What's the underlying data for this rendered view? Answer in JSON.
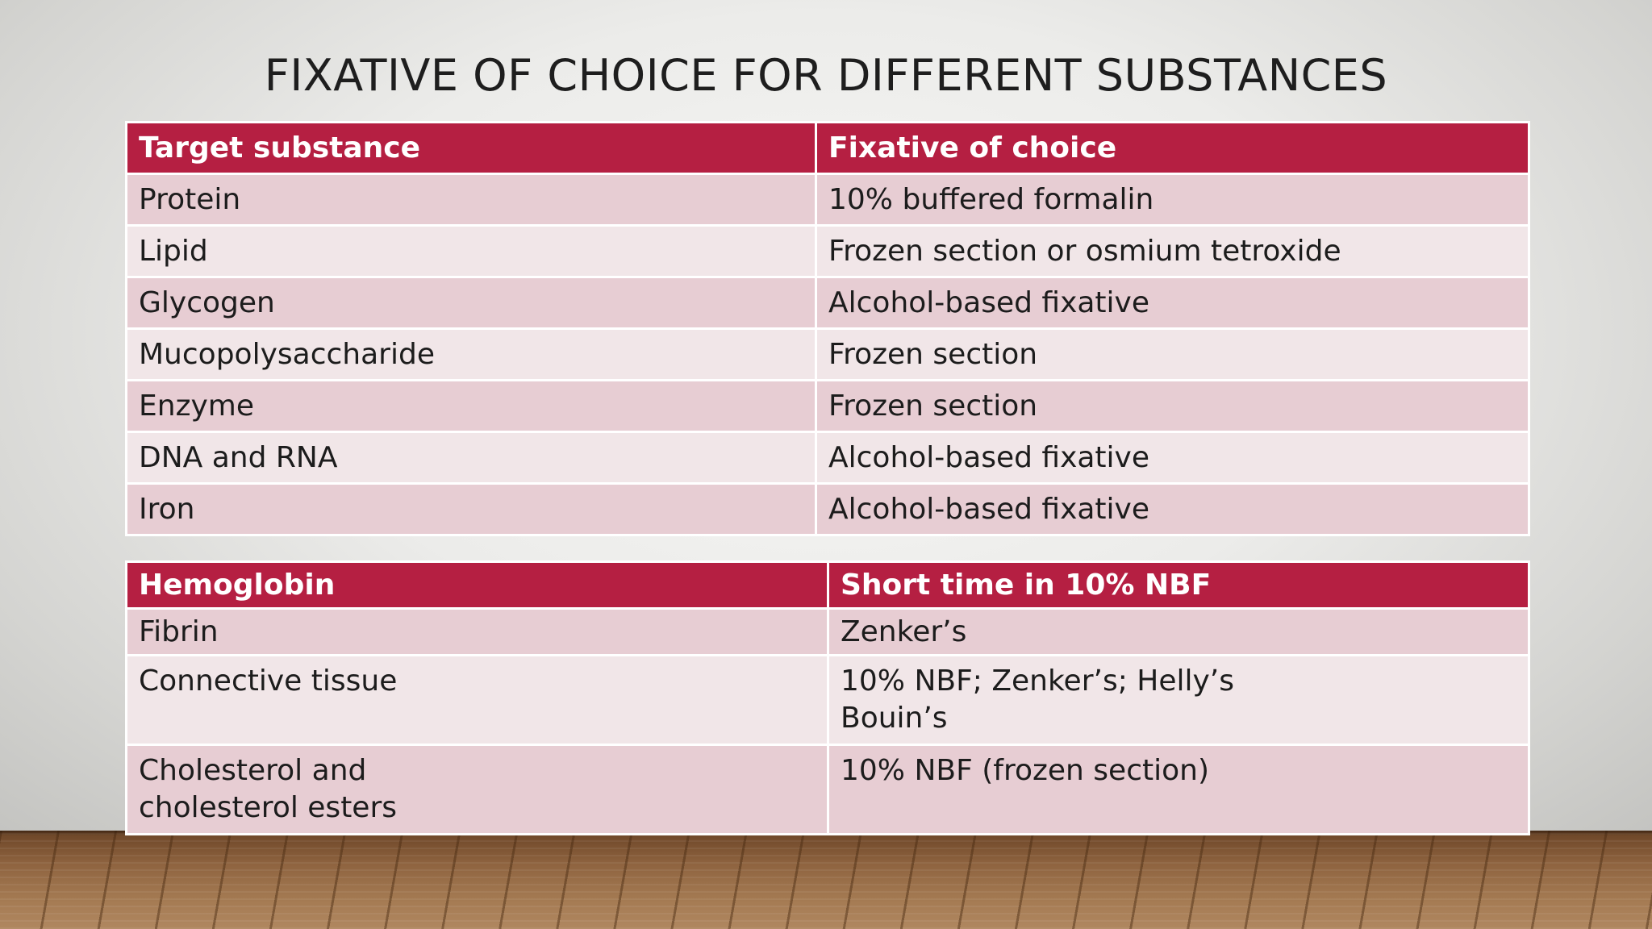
{
  "slide": {
    "title": "FIXATIVE OF CHOICE FOR DIFFERENT SUBSTANCES"
  },
  "table1": {
    "headers": [
      "Target substance",
      "Fixative of choice"
    ],
    "rows": [
      [
        "Protein",
        "10% buffered formalin"
      ],
      [
        "Lipid",
        "Frozen section or osmium tetroxide"
      ],
      [
        "Glycogen",
        "Alcohol-based fixative"
      ],
      [
        "Mucopolysaccharide",
        "Frozen section"
      ],
      [
        "Enzyme",
        "Frozen section"
      ],
      [
        "DNA and RNA",
        "Alcohol-based fixative"
      ],
      [
        "Iron",
        "Alcohol-based fixative"
      ]
    ]
  },
  "table2": {
    "headers": [
      "Hemoglobin",
      "Short time in 10% NBF"
    ],
    "rows": [
      {
        "substance": [
          "Fibrin"
        ],
        "fixative": [
          "Zenker’s"
        ]
      },
      {
        "substance": [
          "Connective tissue"
        ],
        "fixative": [
          "10% NBF; Zenker’s; Helly’s",
          "Bouin’s"
        ]
      },
      {
        "substance": [
          "Cholesterol and",
          "cholesterol esters"
        ],
        "fixative": [
          "10% NBF (frozen section)"
        ]
      }
    ]
  },
  "colors": {
    "header_bg": "#b51f42",
    "row_dark": "#e7cdd3",
    "row_light": "#f1e6e8"
  }
}
